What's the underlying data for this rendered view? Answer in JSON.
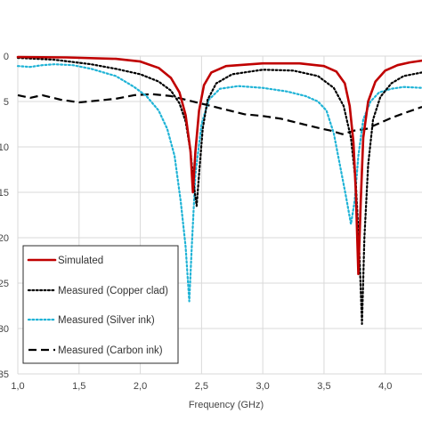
{
  "chart_data": {
    "type": "line",
    "xlabel": "Frequency (GHz)",
    "ylabel": "",
    "xlim": [
      1.0,
      4.3
    ],
    "ylim": [
      -35,
      0
    ],
    "grid": true,
    "legend_position": "bottom-left",
    "x_ticks": [
      {
        "value": 1.0,
        "label": "1,0"
      },
      {
        "value": 1.5,
        "label": "1,5"
      },
      {
        "value": 2.0,
        "label": "2,0"
      },
      {
        "value": 2.5,
        "label": "2,5"
      },
      {
        "value": 3.0,
        "label": "3,0"
      },
      {
        "value": 3.5,
        "label": "3,5"
      },
      {
        "value": 4.0,
        "label": "4,0"
      }
    ],
    "y_ticks": [
      {
        "value": 0,
        "label": "0"
      },
      {
        "value": -5,
        "label": "5"
      },
      {
        "value": -10,
        "label": "10"
      },
      {
        "value": -15,
        "label": "15"
      },
      {
        "value": -20,
        "label": "20"
      },
      {
        "value": -25,
        "label": "25"
      },
      {
        "value": -30,
        "label": "30"
      },
      {
        "value": -35,
        "label": "35"
      }
    ],
    "series": [
      {
        "name": "Simulated",
        "color": "#c00000",
        "style": "solid",
        "points": [
          [
            1.0,
            -0.1
          ],
          [
            1.4,
            -0.15
          ],
          [
            1.8,
            -0.3
          ],
          [
            2.0,
            -0.6
          ],
          [
            2.15,
            -1.3
          ],
          [
            2.25,
            -2.4
          ],
          [
            2.32,
            -4.0
          ],
          [
            2.37,
            -6.5
          ],
          [
            2.41,
            -10.5
          ],
          [
            2.43,
            -15.0
          ],
          [
            2.45,
            -10.5
          ],
          [
            2.48,
            -6.0
          ],
          [
            2.52,
            -3.2
          ],
          [
            2.58,
            -1.8
          ],
          [
            2.7,
            -1.1
          ],
          [
            3.0,
            -0.8
          ],
          [
            3.3,
            -0.8
          ],
          [
            3.5,
            -1.1
          ],
          [
            3.6,
            -1.7
          ],
          [
            3.67,
            -3.0
          ],
          [
            3.71,
            -5.5
          ],
          [
            3.74,
            -9.5
          ],
          [
            3.76,
            -15.0
          ],
          [
            3.78,
            -24.0
          ],
          [
            3.8,
            -16.0
          ],
          [
            3.82,
            -9.0
          ],
          [
            3.86,
            -5.0
          ],
          [
            3.92,
            -2.8
          ],
          [
            4.0,
            -1.6
          ],
          [
            4.1,
            -1.0
          ],
          [
            4.2,
            -0.7
          ],
          [
            4.3,
            -0.5
          ]
        ]
      },
      {
        "name": "Measured (Copper clad)",
        "color": "#000000",
        "style": "dotted",
        "points": [
          [
            1.0,
            -0.2
          ],
          [
            1.3,
            -0.4
          ],
          [
            1.6,
            -0.9
          ],
          [
            1.8,
            -1.4
          ],
          [
            2.0,
            -2.0
          ],
          [
            2.15,
            -2.8
          ],
          [
            2.25,
            -3.8
          ],
          [
            2.32,
            -5.2
          ],
          [
            2.37,
            -7.2
          ],
          [
            2.41,
            -10.5
          ],
          [
            2.44,
            -14.5
          ],
          [
            2.46,
            -16.5
          ],
          [
            2.48,
            -13.0
          ],
          [
            2.51,
            -8.0
          ],
          [
            2.55,
            -4.8
          ],
          [
            2.62,
            -3.0
          ],
          [
            2.75,
            -2.0
          ],
          [
            3.0,
            -1.5
          ],
          [
            3.25,
            -1.6
          ],
          [
            3.45,
            -2.2
          ],
          [
            3.58,
            -3.5
          ],
          [
            3.66,
            -5.5
          ],
          [
            3.72,
            -9.0
          ],
          [
            3.76,
            -14.0
          ],
          [
            3.79,
            -22.0
          ],
          [
            3.81,
            -29.5
          ],
          [
            3.83,
            -20.0
          ],
          [
            3.86,
            -12.0
          ],
          [
            3.9,
            -7.0
          ],
          [
            3.96,
            -4.5
          ],
          [
            4.05,
            -3.0
          ],
          [
            4.15,
            -2.2
          ],
          [
            4.3,
            -1.8
          ]
        ]
      },
      {
        "name": "Measured (Silver ink)",
        "color": "#1fb3d6",
        "style": "dotted",
        "points": [
          [
            1.0,
            -1.1
          ],
          [
            1.1,
            -1.2
          ],
          [
            1.2,
            -1.0
          ],
          [
            1.3,
            -0.9
          ],
          [
            1.45,
            -1.0
          ],
          [
            1.6,
            -1.4
          ],
          [
            1.8,
            -2.2
          ],
          [
            1.95,
            -3.4
          ],
          [
            2.05,
            -4.4
          ],
          [
            2.15,
            -6.0
          ],
          [
            2.22,
            -8.0
          ],
          [
            2.28,
            -11.0
          ],
          [
            2.33,
            -16.0
          ],
          [
            2.37,
            -21.0
          ],
          [
            2.4,
            -27.0
          ],
          [
            2.42,
            -21.0
          ],
          [
            2.45,
            -13.0
          ],
          [
            2.5,
            -7.5
          ],
          [
            2.56,
            -4.8
          ],
          [
            2.65,
            -3.6
          ],
          [
            2.8,
            -3.3
          ],
          [
            3.0,
            -3.5
          ],
          [
            3.2,
            -3.9
          ],
          [
            3.35,
            -4.4
          ],
          [
            3.45,
            -5.0
          ],
          [
            3.52,
            -6.0
          ],
          [
            3.58,
            -8.5
          ],
          [
            3.63,
            -12.0
          ],
          [
            3.68,
            -15.5
          ],
          [
            3.72,
            -18.5
          ],
          [
            3.75,
            -16.0
          ],
          [
            3.78,
            -11.0
          ],
          [
            3.82,
            -7.0
          ],
          [
            3.88,
            -5.0
          ],
          [
            3.95,
            -4.0
          ],
          [
            4.05,
            -3.6
          ],
          [
            4.15,
            -3.4
          ],
          [
            4.3,
            -3.5
          ]
        ]
      },
      {
        "name": "Measured (Carbon ink)",
        "color": "#000000",
        "style": "dashed",
        "points": [
          [
            1.0,
            -4.3
          ],
          [
            1.1,
            -4.6
          ],
          [
            1.2,
            -4.3
          ],
          [
            1.35,
            -4.8
          ],
          [
            1.5,
            -5.1
          ],
          [
            1.65,
            -4.9
          ],
          [
            1.8,
            -4.7
          ],
          [
            1.95,
            -4.3
          ],
          [
            2.1,
            -4.2
          ],
          [
            2.25,
            -4.4
          ],
          [
            2.4,
            -4.9
          ],
          [
            2.55,
            -5.4
          ],
          [
            2.7,
            -5.9
          ],
          [
            2.85,
            -6.4
          ],
          [
            3.0,
            -6.6
          ],
          [
            3.15,
            -6.9
          ],
          [
            3.3,
            -7.4
          ],
          [
            3.45,
            -7.9
          ],
          [
            3.55,
            -8.2
          ],
          [
            3.65,
            -8.6
          ],
          [
            3.75,
            -8.2
          ],
          [
            3.85,
            -8.0
          ],
          [
            3.95,
            -7.4
          ],
          [
            4.05,
            -6.8
          ],
          [
            4.15,
            -6.3
          ],
          [
            4.3,
            -5.6
          ]
        ]
      }
    ]
  }
}
